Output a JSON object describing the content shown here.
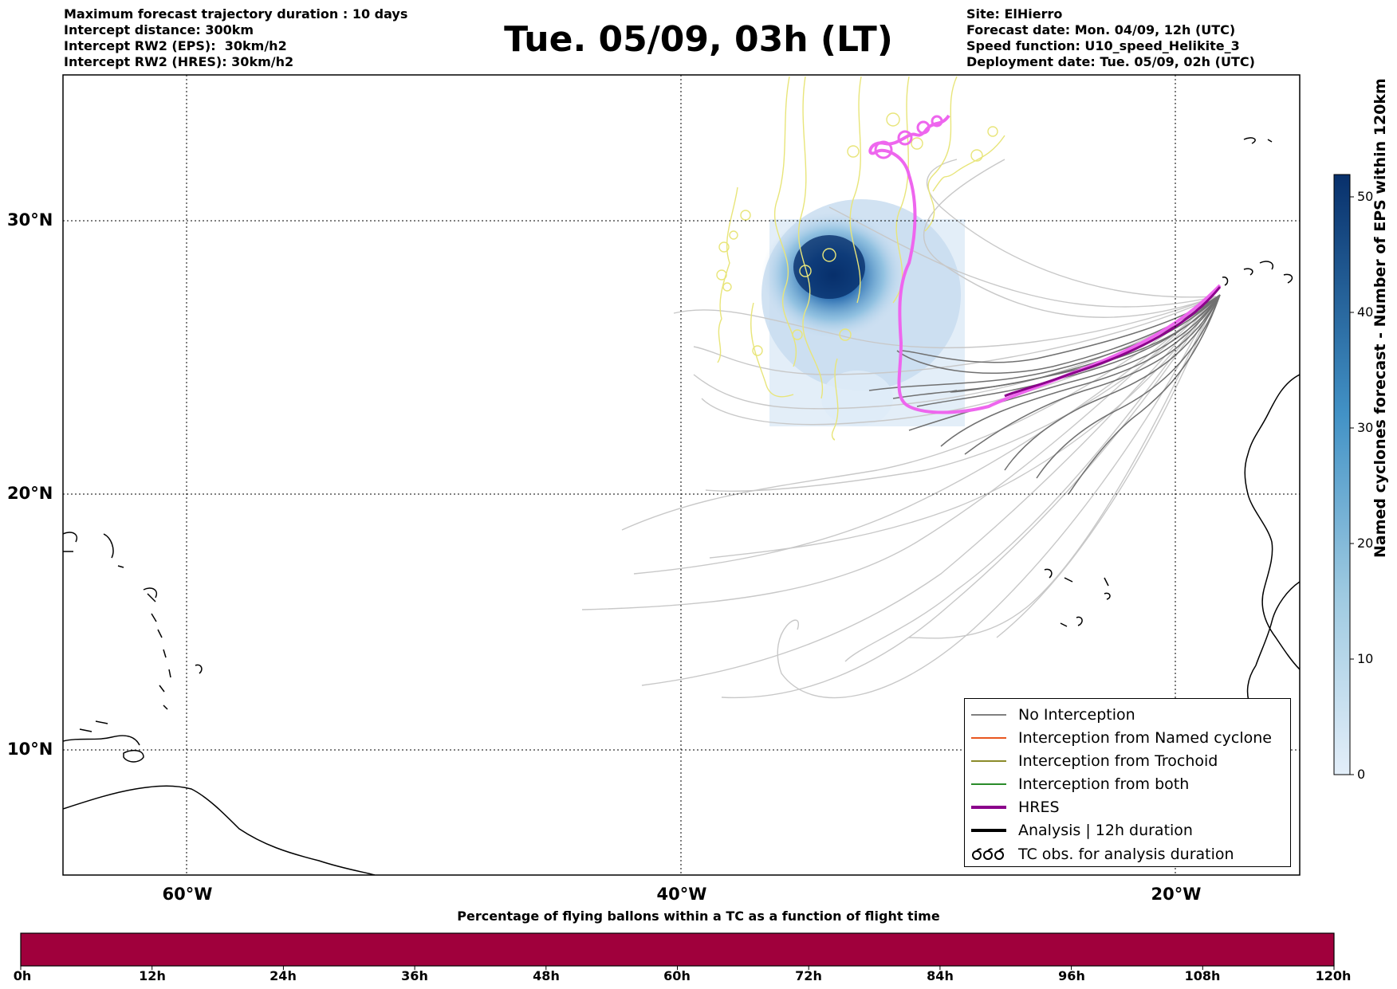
{
  "header_left": [
    "Maximum forecast trajectory duration : 10 days",
    "Intercept distance: 300km",
    "Intercept RW2 (EPS):  30km/h2",
    "Intercept RW2 (HRES): 30km/h2"
  ],
  "title": "Tue. 05/09, 03h (LT)",
  "header_right": [
    "Site: ElHierro",
    "Forecast date: Mon. 04/09, 12h (UTC)",
    "Speed function: U10_speed_Helikite_3",
    "Deployment date: Tue. 05/09, 02h (UTC)"
  ],
  "map": {
    "lat_labels": [
      "30°N",
      "20°N",
      "10°N"
    ],
    "lon_labels": [
      "60°W",
      "40°W",
      "20°W"
    ],
    "gridlines": "dotted",
    "coastline_color": "#000000"
  },
  "legend": {
    "placement": "lower-right",
    "items": [
      {
        "label": "No Interception",
        "color": "#808080",
        "style": "thin"
      },
      {
        "label": "Interception from Named cyclone",
        "color": "#e8561f",
        "style": "thin"
      },
      {
        "label": "Interception from Trochoid",
        "color": "#8b8b2a",
        "style": "thin"
      },
      {
        "label": "Interception from both",
        "color": "#2a8b2a",
        "style": "thin"
      },
      {
        "label": "HRES",
        "color": "#8b008b",
        "style": "thick"
      },
      {
        "label": "Analysis | 12h duration",
        "color": "#000000",
        "style": "thick"
      },
      {
        "label": "TC obs. for analysis duration",
        "color": "#000000",
        "style": "symbol"
      }
    ]
  },
  "colorbar": {
    "title": "Named cyclones forecast - Number of EPS within 120km",
    "ticks": [
      "0",
      "10",
      "20",
      "30",
      "40",
      "50"
    ],
    "color_low": "#e3eef9",
    "color_high": "#08306b"
  },
  "flight_time_bar": {
    "title": "Percentage of flying ballons within a TC as a function of flight time",
    "hours": [
      "0h",
      "12h",
      "24h",
      "36h",
      "48h",
      "60h",
      "72h",
      "84h",
      "96h",
      "108h",
      "120h"
    ],
    "fill_color": "#a0003c"
  },
  "colors": {
    "eps_track": "#c8c8c8",
    "eps_track_dark": "#707070",
    "trochoid_track": "#e8e57a",
    "hres_track": "#ee66ee",
    "hres_legend": "#8b008b"
  }
}
